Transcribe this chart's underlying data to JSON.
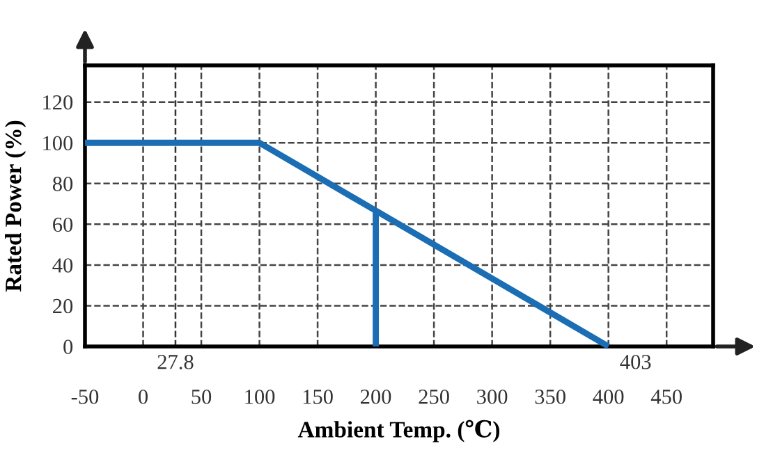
{
  "chart_data": {
    "type": "line",
    "xlabel": "Ambient Temp. (℃)",
    "ylabel": "Rated Power (%)",
    "series": [
      {
        "color": "#1b6db4",
        "x": [
          -50,
          100,
          400
        ],
        "values": [
          100,
          100,
          0
        ]
      },
      {
        "color": "#1b6db4",
        "x": [
          200,
          200
        ],
        "values": [
          0,
          66.7
        ]
      }
    ],
    "xlim": [
      -50,
      490
    ],
    "xticks": [
      -50,
      0,
      50,
      100,
      150,
      200,
      250,
      300,
      350,
      400,
      450
    ],
    "ylim": [
      0,
      138
    ],
    "yticks": [
      0,
      20,
      40,
      60,
      80,
      100,
      120
    ],
    "ref_lines": [
      {
        "axis": "x",
        "value": 27.8,
        "label": "27.8",
        "color": "#333333",
        "line_style": "dashed"
      }
    ],
    "annotations": [
      {
        "text": "403",
        "x": 403,
        "y": 0
      }
    ],
    "grid": true,
    "marker": "none",
    "line_style": "solid"
  }
}
